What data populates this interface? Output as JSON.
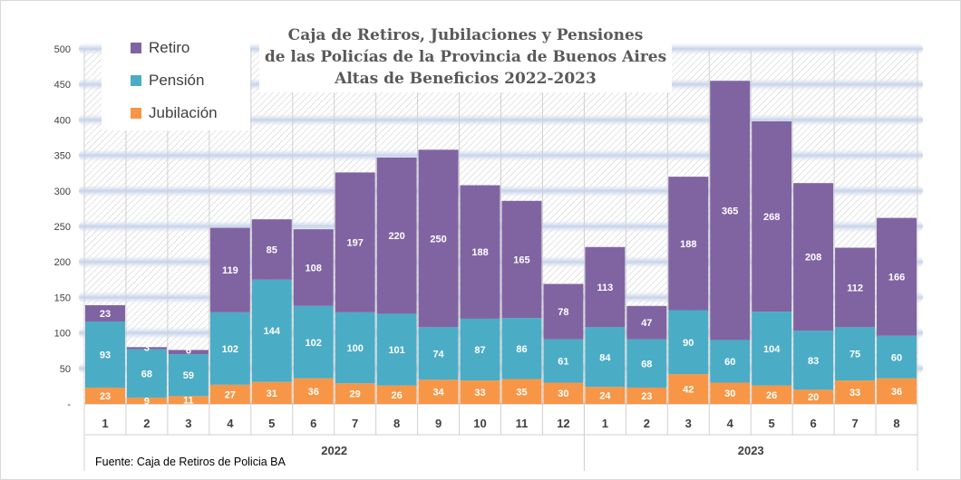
{
  "chart_data": {
    "type": "bar",
    "stacked": true,
    "title_lines": [
      "Caja de Retiros, Jubilaciones y Pensiones",
      "de las Policías de la Provincia de Buenos Aires",
      "Altas de Beneficios 2022-2023"
    ],
    "categories": [
      "1",
      "2",
      "3",
      "4",
      "5",
      "6",
      "7",
      "8",
      "9",
      "10",
      "11",
      "12",
      "1",
      "2",
      "3",
      "4",
      "5",
      "6",
      "7",
      "8"
    ],
    "groups": [
      {
        "label": "2022",
        "count": 12
      },
      {
        "label": "2023",
        "count": 8
      }
    ],
    "series": [
      {
        "name": "Jubilación",
        "color": "#f79646",
        "values": [
          23,
          9,
          11,
          27,
          31,
          36,
          29,
          26,
          34,
          33,
          35,
          30,
          24,
          23,
          42,
          30,
          26,
          20,
          33,
          36
        ]
      },
      {
        "name": "Pensión",
        "color": "#4bacc6",
        "values": [
          93,
          68,
          59,
          102,
          144,
          102,
          100,
          101,
          74,
          87,
          86,
          61,
          84,
          68,
          90,
          60,
          104,
          83,
          75,
          60
        ]
      },
      {
        "name": "Retiro",
        "color": "#8064a2",
        "values": [
          23,
          3,
          6,
          119,
          85,
          108,
          197,
          220,
          250,
          188,
          165,
          78,
          113,
          47,
          188,
          365,
          268,
          208,
          112,
          166
        ]
      }
    ],
    "y_ticks": [
      "-",
      "50",
      "100",
      "150",
      "200",
      "250",
      "300",
      "350",
      "400",
      "450",
      "500"
    ],
    "ylim": [
      0,
      500
    ],
    "legend_order": [
      "Retiro",
      "Pensión",
      "Jubilación"
    ],
    "legend_position": "top-left",
    "grid": true
  },
  "source_note": "Fuente: Caja de Retiros de Policia BA"
}
